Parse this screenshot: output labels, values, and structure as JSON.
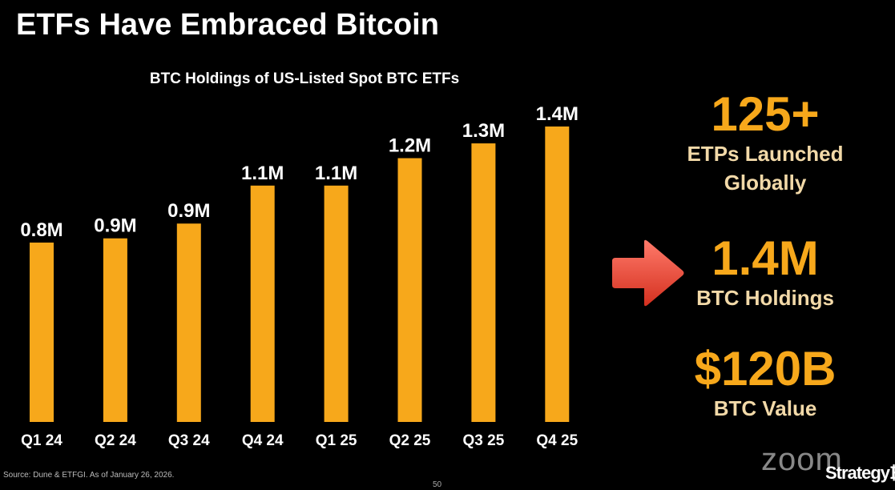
{
  "slide": {
    "title": "ETFs Have Embraced Bitcoin",
    "source": "Source: Dune & ETFGI. As of January 26, 2026.",
    "page_number": "50",
    "zoom_watermark": "zoom",
    "logo_text": "Strategy₿"
  },
  "stats": [
    {
      "value": "125+",
      "label_line1": "ETPs Launched",
      "label_line2": "Globally"
    },
    {
      "value": "1.4M",
      "label_line1": "BTC Holdings",
      "label_line2": ""
    },
    {
      "value": "$120B",
      "label_line1": "BTC Value",
      "label_line2": ""
    }
  ],
  "colors": {
    "bar": "#f7a81b",
    "stat_value": "#f7a81b",
    "stat_label": "#f2d9a8",
    "arrow": "#e8402f"
  },
  "chart_data": {
    "type": "bar",
    "title": "BTC Holdings of US-Listed Spot BTC ETFs",
    "categories": [
      "Q1 24",
      "Q2 24",
      "Q3 24",
      "Q4 24",
      "Q1 25",
      "Q2 25",
      "Q3 25",
      "Q4 25"
    ],
    "values": [
      0.85,
      0.87,
      0.94,
      1.12,
      1.12,
      1.25,
      1.32,
      1.4
    ],
    "data_labels": [
      "0.8M",
      "0.9M",
      "0.9M",
      "1.1M",
      "1.1M",
      "1.2M",
      "1.3M",
      "1.4M"
    ],
    "unit": "M BTC",
    "ylim": [
      0,
      1.4
    ],
    "grid": false,
    "xlabel": "",
    "ylabel": ""
  }
}
